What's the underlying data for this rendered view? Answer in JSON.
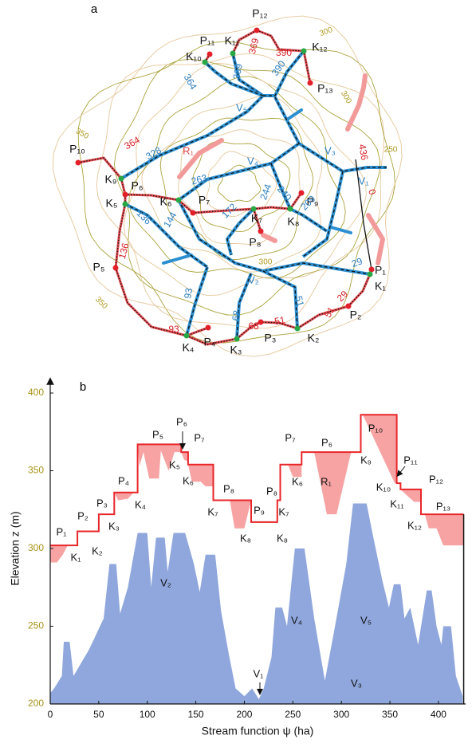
{
  "map": {
    "panel_label": "a",
    "ridge_points": [
      "P₁",
      "P₂",
      "P₃",
      "P₄",
      "P₅",
      "P₆",
      "P₇",
      "P₈",
      "P₉",
      "P₁₀",
      "P₁₁",
      "P₁₂",
      "P₁₃"
    ],
    "nodes": [
      "K₁",
      "K₂",
      "K₃",
      "K₄",
      "K₅",
      "K₆",
      "K₇",
      "K₈",
      "K₉",
      "K₁₀",
      "K₁₁",
      "K₁₂"
    ],
    "valleys": [
      "V₁",
      "V₂",
      "V₃",
      "V₄",
      "V₅"
    ],
    "ridge_region": "R₁",
    "stream_labels": [
      364,
      369,
      390,
      328,
      263,
      244,
      240,
      209,
      136,
      144,
      172,
      29,
      51,
      68,
      93
    ],
    "ridge_labels": [
      364,
      369,
      390,
      136,
      93,
      68,
      51,
      51,
      29,
      436,
      0
    ],
    "contour_labels": [
      300,
      300,
      250,
      350,
      350,
      300
    ]
  },
  "chart_data": {
    "type": "area",
    "panel_label": "b",
    "xlabel": "Stream function ψ (ha)",
    "ylabel": "Elevation z (m)",
    "xlim": [
      0,
      428
    ],
    "xticks": [
      0,
      50,
      100,
      150,
      200,
      250,
      300,
      350,
      400
    ],
    "ylim": [
      200,
      400
    ],
    "yticks": [
      200,
      250,
      300,
      350,
      400
    ],
    "series": [
      {
        "color": "#8fa7dc",
        "x": [
          0,
          4,
          12,
          14,
          20,
          24,
          40,
          55,
          61,
          68,
          72,
          80,
          90,
          100,
          104,
          109,
          118,
          121,
          127,
          139,
          148,
          154,
          160,
          170,
          176,
          184,
          191,
          200,
          208,
          215,
          220,
          228,
          232,
          239,
          244,
          252,
          262,
          272,
          283,
          292,
          305,
          312,
          326,
          332,
          342,
          349,
          354,
          361,
          365,
          371,
          379,
          388,
          393,
          398,
          403,
          405,
          413,
          418,
          425
        ],
        "values": [
          207,
          210,
          218,
          240,
          240,
          218,
          235,
          255,
          290,
          290,
          258,
          275,
          310,
          310,
          275,
          307,
          307,
          285,
          310,
          310,
          290,
          272,
          296,
          296,
          260,
          232,
          210,
          205,
          210,
          203,
          210,
          230,
          262,
          262,
          250,
          300,
          300,
          255,
          215,
          245,
          290,
          329,
          329,
          310,
          280,
          262,
          277,
          277,
          255,
          262,
          238,
          273,
          273,
          250,
          238,
          250,
          250,
          218,
          205
        ]
      },
      {
        "color": "#e8262a",
        "fill_color": "#f7a3a3",
        "x": [
          0,
          7,
          13,
          18,
          28,
          28,
          50,
          50,
          66,
          66,
          70,
          80,
          86,
          90,
          90,
          92,
          96,
          102,
          112,
          114,
          122,
          128,
          135,
          135,
          138,
          142,
          142,
          146,
          155,
          160,
          168,
          168,
          185,
          190,
          200,
          207,
          207,
          234,
          234,
          237,
          237,
          245,
          250,
          259,
          259,
          272,
          285,
          295,
          310,
          320,
          320,
          322,
          355,
          357,
          357,
          361,
          361,
          366,
          375,
          382,
          382,
          386,
          390,
          398,
          405,
          426
        ],
        "values": [
          302,
          302,
          302,
          302,
          302,
          311,
          311,
          322,
          322,
          336,
          336,
          336,
          336,
          336,
          367,
          367,
          367,
          367,
          367,
          367,
          367,
          367,
          367,
          362,
          362,
          362,
          354,
          354,
          354,
          354,
          354,
          331,
          331,
          331,
          331,
          331,
          317,
          317,
          331,
          331,
          354,
          354,
          354,
          354,
          362,
          362,
          362,
          362,
          362,
          362,
          386,
          386,
          386,
          386,
          342,
          342,
          338,
          338,
          338,
          338,
          322,
          322,
          322,
          322,
          322,
          322
        ],
        "fill_to": [
          291,
          291,
          296,
          302,
          302,
          311,
          311,
          322,
          322,
          336,
          331,
          332,
          336,
          336,
          367,
          353,
          362,
          345,
          345,
          363,
          350,
          362,
          362,
          362,
          357,
          356,
          354,
          343,
          343,
          340,
          340,
          331,
          331,
          313,
          313,
          331,
          317,
          317,
          331,
          331,
          354,
          354,
          346,
          346,
          362,
          362,
          322,
          322,
          362,
          362,
          386,
          386,
          342,
          342,
          342,
          342,
          338,
          335,
          330,
          330,
          322,
          322,
          313,
          313,
          302,
          302
        ]
      }
    ],
    "annotations": [
      "P₁",
      "K₁",
      "P₂",
      "K₂",
      "P₃",
      "K₃",
      "P₄",
      "K₄",
      "P₅",
      "P₆",
      "K₅",
      "P₇",
      "K₆",
      "P₈",
      "K₇",
      "P₉",
      "K₈",
      "P₈",
      "K₈",
      "K₇",
      "P₇",
      "K₆",
      "P₆",
      "R₁",
      "P₁₀",
      "K₉",
      "P₁₁",
      "K₁₀",
      "P₁₂",
      "K₁₁",
      "K₁₂",
      "P₁₃",
      "V₁",
      "V₂",
      "V₄",
      "V₅",
      "V₃"
    ]
  }
}
